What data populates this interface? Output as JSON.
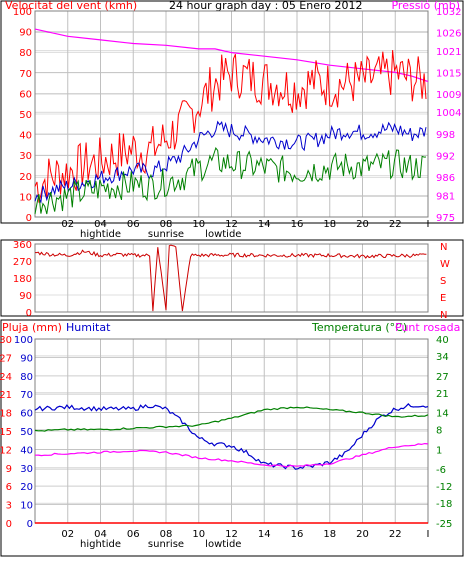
{
  "header": {
    "title": "24 hour graph day : 05 Enero 2012",
    "wind_label": "Velocitat del vent (kmh)",
    "pressure_label": "Pressió (mb)"
  },
  "mid": {
    "compass_letters": [
      "N",
      "W",
      "S",
      "E",
      "N"
    ]
  },
  "bottom": {
    "rain_label": "Pluja (mm)",
    "humidity_label": "Humitat",
    "temp_label": "Temperatura (°C)",
    "dew_label": "Punt rosada"
  },
  "colors": {
    "frame": "#000000",
    "grid": "#c0c0c0",
    "wind": "#ff0000",
    "pressure": "#ff00ff",
    "gust": "#ff0000",
    "avg_wind": "#0000cc",
    "wind_low": "#008000",
    "direction": "#cc0000",
    "humidity": "#0000cc",
    "temperature": "#008000",
    "dewpoint": "#ff00ff",
    "rain": "#ff0000"
  },
  "x_axis": {
    "tick_labels": [
      "02",
      "04",
      "06",
      "08",
      "10",
      "12",
      "14",
      "16",
      "18",
      "20",
      "22",
      "I"
    ],
    "annotations": [
      {
        "label": "hightide",
        "hour": 4
      },
      {
        "label": "sunrise",
        "hour": 8
      },
      {
        "label": "lowtide",
        "hour": 11.5
      }
    ]
  },
  "chart_data": [
    {
      "type": "line",
      "name": "wind_and_pressure",
      "x_unit": "hour",
      "left_axis": {
        "label": "Velocitat del vent (kmh)",
        "ticks": [
          0,
          10,
          20,
          30,
          40,
          50,
          60,
          70,
          80,
          90,
          100
        ],
        "ylim": [
          0,
          100
        ]
      },
      "right_axis": {
        "label": "Pressió (mb)",
        "ticks": [
          975,
          981,
          986,
          992,
          998,
          1004,
          1009,
          1015,
          1021,
          1026,
          1032
        ],
        "ylim": [
          975,
          1032
        ]
      },
      "series": [
        {
          "axis": "right",
          "x": [
            0,
            2,
            4,
            6,
            8,
            10,
            11,
            12,
            14,
            16,
            18,
            20,
            21,
            22,
            23,
            24
          ],
          "values": [
            1027,
            1025,
            1024,
            1023,
            1022.5,
            1021.5,
            1021.5,
            1020.5,
            1019.5,
            1018.5,
            1017,
            1016,
            1015.5,
            1015,
            1014,
            1012.5
          ]
        },
        {
          "axis": "left",
          "x": [
            0,
            1,
            2,
            3,
            4,
            5,
            6,
            7,
            8,
            9,
            10,
            11,
            12,
            13,
            14,
            15,
            16,
            17,
            18,
            19,
            20,
            21,
            22,
            23,
            24
          ],
          "values": [
            15,
            20,
            22,
            25,
            27,
            30,
            33,
            32,
            38,
            45,
            55,
            65,
            70,
            68,
            66,
            64,
            62,
            66,
            64,
            65,
            66,
            68,
            70,
            67,
            65
          ]
        },
        {
          "axis": "left",
          "x": [
            0,
            1,
            2,
            3,
            4,
            5,
            6,
            7,
            8,
            9,
            10,
            11,
            12,
            13,
            14,
            15,
            16,
            17,
            18,
            19,
            20,
            21,
            22,
            23,
            24
          ],
          "values": [
            10,
            13,
            15,
            17,
            19,
            21,
            23,
            22,
            25,
            30,
            38,
            43,
            42,
            40,
            38,
            37,
            36,
            37,
            40,
            42,
            41,
            42,
            43,
            40,
            42
          ]
        },
        {
          "axis": "left",
          "x": [
            0,
            1,
            2,
            3,
            4,
            5,
            6,
            7,
            8,
            9,
            10,
            11,
            12,
            13,
            14,
            15,
            16,
            17,
            18,
            19,
            20,
            21,
            22,
            23,
            24
          ],
          "values": [
            7,
            9,
            10,
            12,
            14,
            15,
            16,
            15,
            17,
            19,
            24,
            27,
            26,
            25,
            24,
            23,
            22,
            23,
            24,
            25,
            24,
            25,
            26,
            24,
            25
          ]
        }
      ]
    },
    {
      "type": "line",
      "name": "wind_direction",
      "x_unit": "hour",
      "left_axis": {
        "ticks": [
          0,
          90,
          180,
          270,
          360
        ],
        "ylim": [
          0,
          360
        ]
      },
      "series": [
        {
          "x": [
            0,
            1,
            2,
            3,
            4,
            5,
            6,
            7,
            7.2,
            7.5,
            8,
            8.2,
            8.6,
            9,
            9.5,
            10,
            12,
            14,
            16,
            18,
            20,
            22,
            24
          ],
          "values": [
            315,
            305,
            300,
            320,
            300,
            305,
            300,
            300,
            5,
            350,
            10,
            355,
            340,
            5,
            300,
            300,
            302,
            300,
            300,
            300,
            295,
            298,
            300
          ]
        }
      ]
    },
    {
      "type": "line",
      "name": "humidity_temperature",
      "x_unit": "hour",
      "left_axis": {
        "label": "Pluja (mm)",
        "ticks": [
          0,
          3,
          6,
          9,
          12,
          15,
          18,
          21,
          24,
          27,
          30
        ],
        "ylim": [
          0,
          30
        ]
      },
      "left_axis_2": {
        "label": "Humitat",
        "ticks": [
          0,
          10,
          20,
          30,
          40,
          50,
          60,
          70,
          80,
          90,
          100
        ],
        "ylim": [
          0,
          100
        ]
      },
      "right_axis": {
        "label": "Temperatura (°C)",
        "ticks": [
          -25,
          -18,
          -12,
          -6,
          1,
          8,
          14,
          21,
          27,
          34,
          40
        ],
        "ylim": [
          -25,
          40
        ]
      },
      "series": [
        {
          "axis": "left2",
          "x": [
            0,
            2,
            4,
            6,
            7,
            8,
            9,
            10,
            11,
            12,
            13,
            14,
            15,
            16,
            17,
            18,
            19,
            20,
            21,
            22,
            23,
            24
          ],
          "values": [
            62,
            63,
            62,
            62,
            64,
            62,
            55,
            46,
            43,
            42,
            38,
            32,
            31,
            30,
            31,
            33,
            38,
            48,
            57,
            62,
            64,
            64
          ]
        },
        {
          "axis": "right",
          "x": [
            0,
            2,
            4,
            6,
            8,
            10,
            12,
            14,
            16,
            18,
            20,
            22,
            24
          ],
          "values": [
            7.5,
            8,
            8,
            8.5,
            9,
            9.5,
            12,
            15,
            16,
            15,
            14,
            12.5,
            13
          ]
        },
        {
          "axis": "right",
          "x": [
            0,
            2,
            4,
            6,
            8,
            10,
            12,
            14,
            16,
            18,
            20,
            22,
            24
          ],
          "values": [
            -1,
            -0.5,
            0,
            0.5,
            0,
            -2,
            -3,
            -4.5,
            -5,
            -4,
            -1,
            2,
            3
          ]
        },
        {
          "axis": "left",
          "x": [
            0,
            24
          ],
          "values": [
            0,
            0
          ]
        }
      ]
    }
  ]
}
